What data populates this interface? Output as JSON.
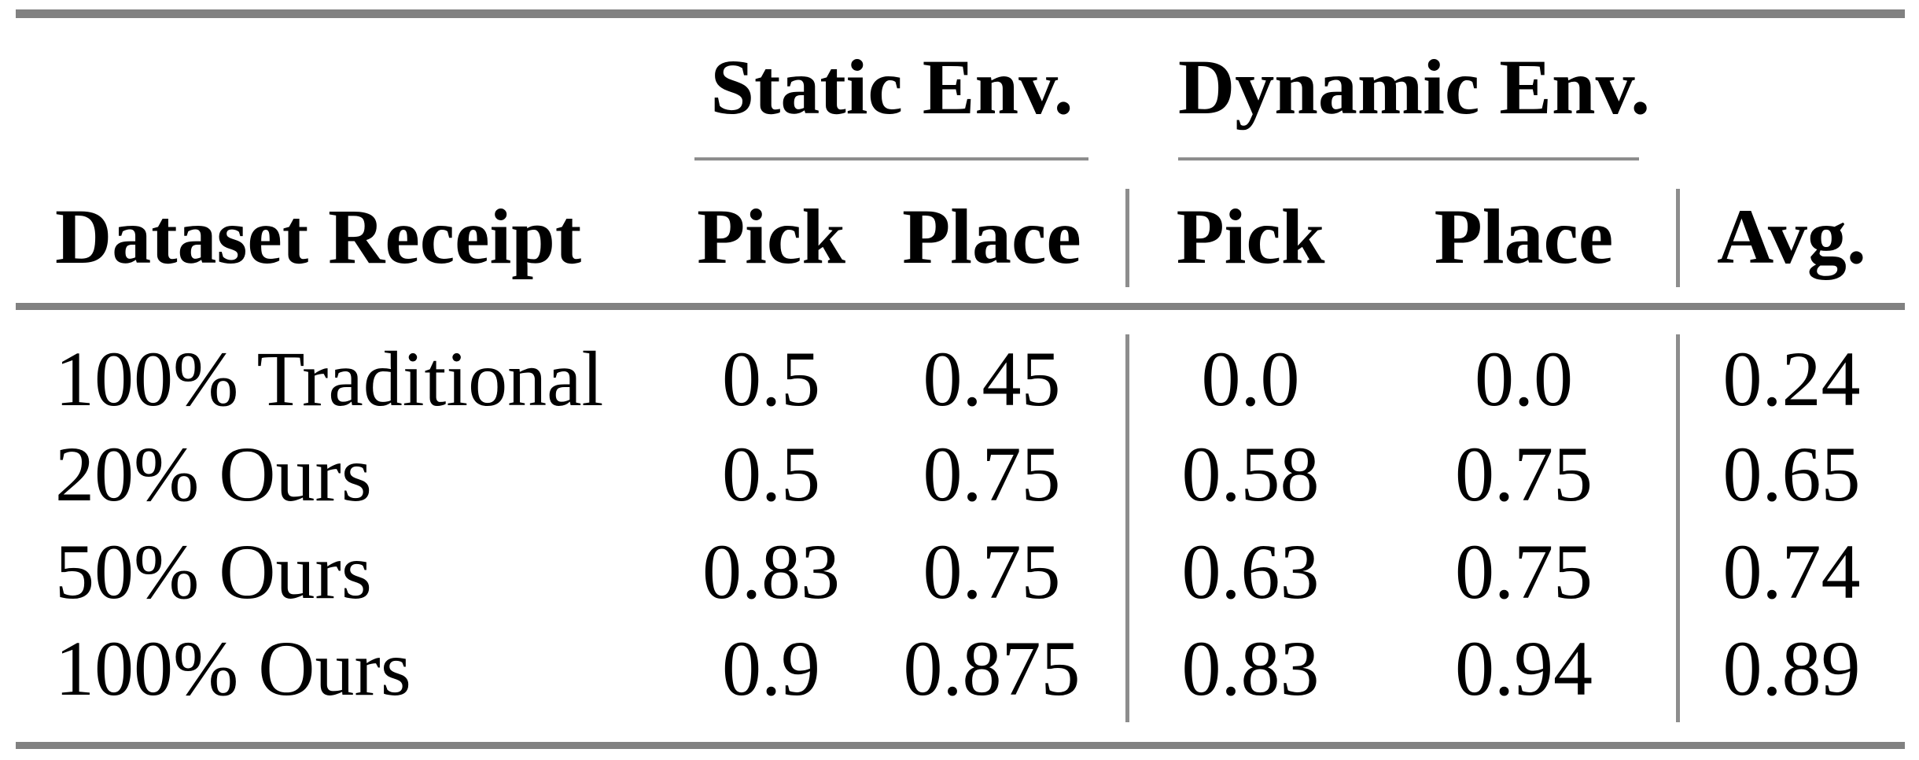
{
  "table": {
    "group_headers": {
      "static": {
        "label": "Static Env."
      },
      "dynamic": {
        "label": "Dynamic Env."
      }
    },
    "columns": {
      "dataset": "Dataset Receipt",
      "static_pick": "Pick",
      "static_place": "Place",
      "dynamic_pick": "Pick",
      "dynamic_place": "Place",
      "avg": "Avg."
    },
    "rows": [
      {
        "dataset": "100% Traditional",
        "static_pick": "0.5",
        "static_place": "0.45",
        "dynamic_pick": "0.0",
        "dynamic_place": "0.0",
        "avg": "0.24"
      },
      {
        "dataset": "20% Ours",
        "static_pick": "0.5",
        "static_place": "0.75",
        "dynamic_pick": "0.58",
        "dynamic_place": "0.75",
        "avg": "0.65"
      },
      {
        "dataset": "50% Ours",
        "static_pick": "0.83",
        "static_place": "0.75",
        "dynamic_pick": "0.63",
        "dynamic_place": "0.75",
        "avg": "0.74"
      },
      {
        "dataset": "100% Ours",
        "static_pick": "0.9",
        "static_place": "0.875",
        "dynamic_pick": "0.83",
        "dynamic_place": "0.94",
        "avg": "0.89"
      }
    ],
    "colors": {
      "thick_rule_gray": "#818181",
      "thin_rule_gray": "#8d8d8d",
      "text": "#000000",
      "background": "#ffffff"
    }
  }
}
